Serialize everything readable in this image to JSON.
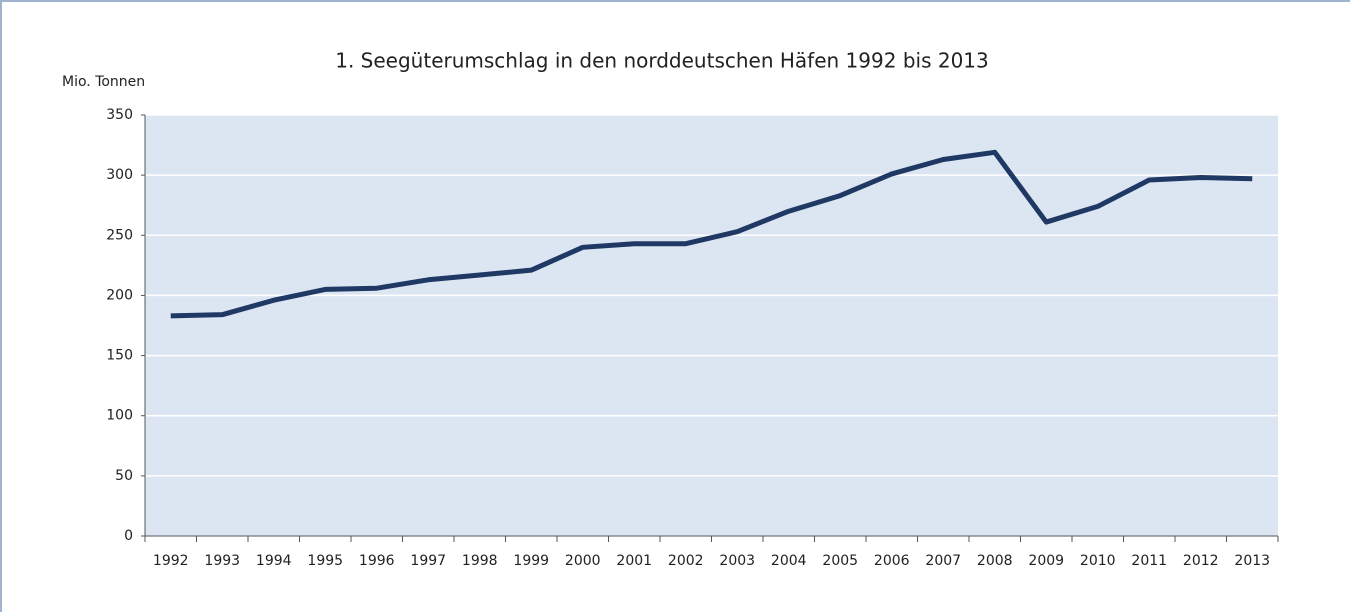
{
  "chart_data": {
    "type": "line",
    "title": "1. Seegüterumschlag in den norddeutschen Häfen 1992 bis 2013",
    "ylabel": "Mio. Tonnen",
    "categories": [
      "1992",
      "1993",
      "1994",
      "1995",
      "1996",
      "1997",
      "1998",
      "1999",
      "2000",
      "2001",
      "2002",
      "2003",
      "2004",
      "2005",
      "2006",
      "2007",
      "2008",
      "2009",
      "2010",
      "2011",
      "2012",
      "2013"
    ],
    "values": [
      183,
      184,
      196,
      205,
      206,
      213,
      217,
      221,
      240,
      243,
      243,
      253,
      270,
      283,
      301,
      313,
      319,
      261,
      274,
      296,
      298,
      297
    ],
    "color": "#1f3864",
    "ylim": [
      0,
      350
    ],
    "yticks": [
      0,
      50,
      100,
      150,
      200,
      250,
      300,
      350
    ],
    "grid": true
  }
}
